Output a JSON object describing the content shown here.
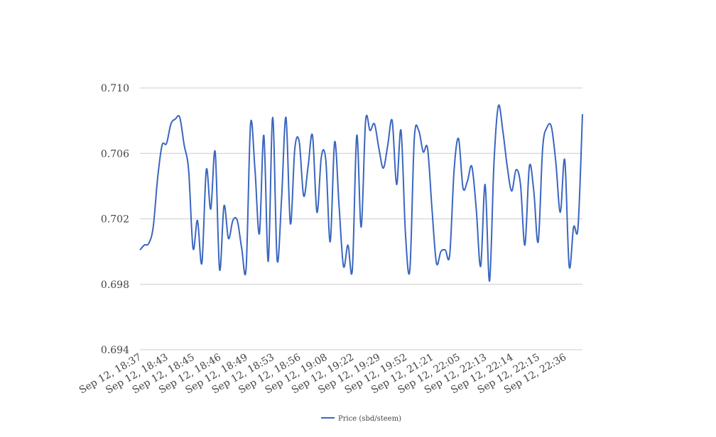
{
  "chart_data": {
    "type": "line",
    "categories": [
      "Sep 12, 18:37",
      null,
      null,
      null,
      null,
      null,
      "Sep 12, 18:43",
      null,
      null,
      null,
      null,
      null,
      "Sep 12, 18:45",
      null,
      null,
      null,
      null,
      null,
      "Sep 12, 18:46",
      null,
      null,
      null,
      null,
      null,
      "Sep 12, 18:49",
      null,
      null,
      null,
      null,
      null,
      "Sep 12, 18:53",
      null,
      null,
      null,
      null,
      null,
      "Sep 12, 18:56",
      null,
      null,
      null,
      null,
      null,
      "Sep 12, 19:08",
      null,
      null,
      null,
      null,
      null,
      "Sep 12, 19:22",
      null,
      null,
      null,
      null,
      null,
      "Sep 12, 19:29",
      null,
      null,
      null,
      null,
      null,
      "Sep 12, 19:52",
      null,
      null,
      null,
      null,
      null,
      "Sep 12, 21:21",
      null,
      null,
      null,
      null,
      null,
      "Sep 12, 22:05",
      null,
      null,
      null,
      null,
      null,
      "Sep 12, 22:13",
      null,
      null,
      null,
      null,
      null,
      "Sep 12, 22:14",
      null,
      null,
      null,
      null,
      null,
      "Sep 12, 22:15",
      null,
      null,
      null,
      null,
      null,
      "Sep 12, 22:36",
      null,
      null,
      null,
      null
    ],
    "series": [
      {
        "name": "Price (sbd/steem)",
        "color": "#3a66c0",
        "values": [
          0.7001,
          0.7004,
          0.7005,
          0.7015,
          0.7045,
          0.7065,
          0.7066,
          0.7078,
          0.7081,
          0.7082,
          0.7065,
          0.705,
          0.7002,
          0.7019,
          0.6993,
          0.705,
          0.7026,
          0.7061,
          0.6989,
          0.7028,
          0.7008,
          0.7019,
          0.7019,
          0.7002,
          0.699,
          0.7078,
          0.705,
          0.7011,
          0.7071,
          0.6994,
          0.7082,
          0.6995,
          0.7032,
          0.7082,
          0.7017,
          0.7063,
          0.7067,
          0.7034,
          0.7052,
          0.7071,
          0.7024,
          0.7058,
          0.7056,
          0.7006,
          0.7067,
          0.7028,
          0.6991,
          0.7004,
          0.6989,
          0.7071,
          0.7015,
          0.708,
          0.7074,
          0.7078,
          0.7063,
          0.7051,
          0.7065,
          0.708,
          0.7041,
          0.7074,
          0.7011,
          0.6989,
          0.7069,
          0.7074,
          0.7061,
          0.7063,
          0.7026,
          0.6993,
          0.7,
          0.7001,
          0.6998,
          0.705,
          0.7069,
          0.7039,
          0.7043,
          0.7052,
          0.7026,
          0.6991,
          0.7041,
          0.6982,
          0.7054,
          0.7089,
          0.7074,
          0.7052,
          0.7037,
          0.705,
          0.7041,
          0.7004,
          0.7052,
          0.7037,
          0.7006,
          0.7063,
          0.7076,
          0.7076,
          0.7054,
          0.7024,
          0.7056,
          0.6991,
          0.7015,
          0.7015,
          0.7084
        ]
      }
    ],
    "ylim": [
      0.694,
      0.71
    ],
    "yticks": [
      0.694,
      0.698,
      0.702,
      0.706,
      {
        "value": 0.71,
        "label": "0.710"
      }
    ],
    "grid": true,
    "legend": "bottom"
  }
}
